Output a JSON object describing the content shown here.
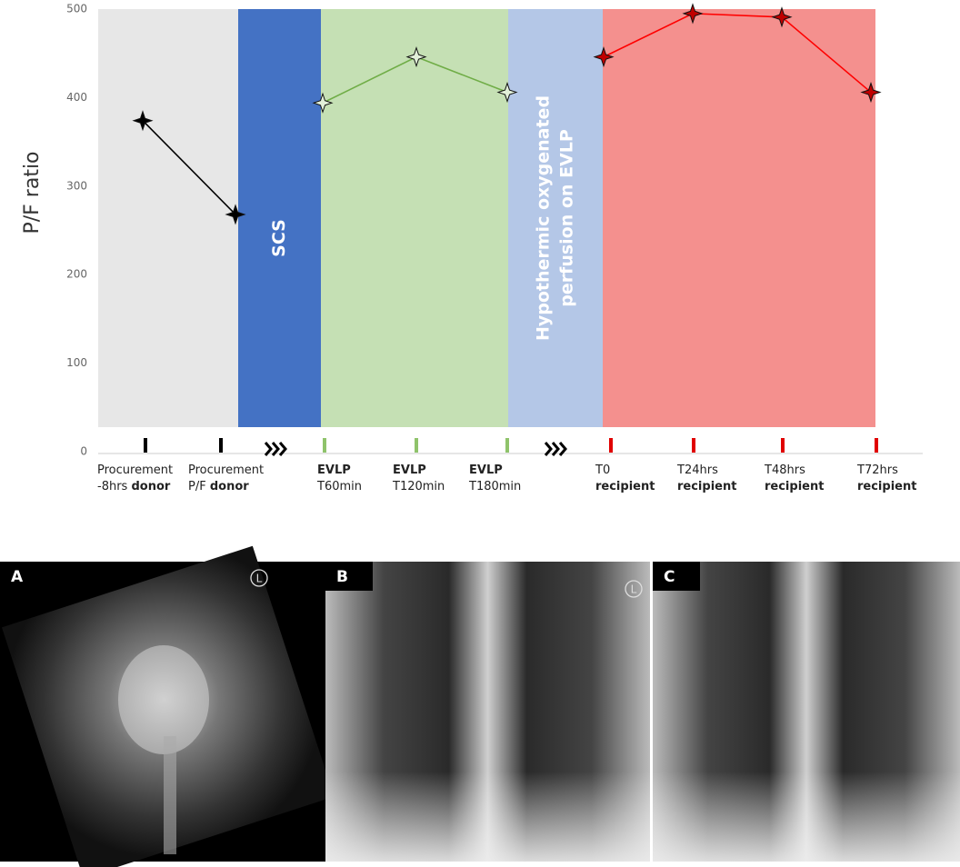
{
  "chart_data": {
    "type": "line",
    "ylabel": "P/F ratio",
    "ylim": [
      0,
      500
    ],
    "yticks": [
      0,
      100,
      200,
      300,
      400,
      500
    ],
    "categories": [
      [
        [
          {
            "t": "Procurement"
          }
        ],
        [
          {
            "t": "-8hrs "
          },
          {
            "t": "donor",
            "b": true
          }
        ]
      ],
      [
        [
          {
            "t": "Procurement"
          }
        ],
        [
          {
            "t": "P/F "
          },
          {
            "t": "donor",
            "b": true
          }
        ]
      ],
      [
        [
          {
            "t": "EVLP",
            "b": true
          }
        ],
        [
          {
            "t": "T60min"
          }
        ]
      ],
      [
        [
          {
            "t": "EVLP",
            "b": true
          }
        ],
        [
          {
            "t": "T120min"
          }
        ]
      ],
      [
        [
          {
            "t": "EVLP",
            "b": true
          }
        ],
        [
          {
            "t": "T180min"
          }
        ]
      ],
      [
        [
          {
            "t": "T0"
          }
        ],
        [
          {
            "t": "recipient",
            "b": true
          }
        ]
      ],
      [
        [
          {
            "t": "T24hrs"
          }
        ],
        [
          {
            "t": "recipient",
            "b": true
          }
        ]
      ],
      [
        [
          {
            "t": "T48hrs"
          }
        ],
        [
          {
            "t": "recipient",
            "b": true
          }
        ]
      ],
      [
        [
          {
            "t": "T72hrs"
          }
        ],
        [
          {
            "t": "recipient",
            "b": true
          }
        ]
      ]
    ],
    "tick_colors": [
      "#000000",
      "#000000",
      "#8fc36b",
      "#8fc36b",
      "#8fc36b",
      "#e00000",
      "#e00000",
      "#e00000",
      "#e00000"
    ],
    "series": [
      {
        "color": "#000000",
        "marker_fill": "#000000",
        "values": [
          374,
          268,
          null,
          null,
          null,
          null,
          null,
          null,
          null
        ]
      },
      {
        "color": "#70ad47",
        "marker_fill": "#e2f0d9",
        "values": [
          null,
          null,
          394,
          446,
          406,
          null,
          null,
          null,
          null
        ]
      },
      {
        "color": "#ff0000",
        "marker_fill": "#c00000",
        "values": [
          null,
          null,
          null,
          null,
          null,
          446,
          495,
          491,
          406
        ]
      }
    ],
    "bands": [
      {
        "color": "#e7e7e7"
      },
      {
        "color": "#4472c4",
        "label": [
          "SCS"
        ]
      },
      {
        "color": "#c5e0b4"
      },
      {
        "color": "#b4c7e7",
        "label": [
          "Hypothermic oxygenated",
          "perfusion on EVLP"
        ]
      },
      {
        "color": "#f4908e"
      }
    ]
  },
  "images": [
    {
      "label": "A",
      "marker": "L"
    },
    {
      "label": "B",
      "marker": "L"
    },
    {
      "label": "C"
    }
  ]
}
